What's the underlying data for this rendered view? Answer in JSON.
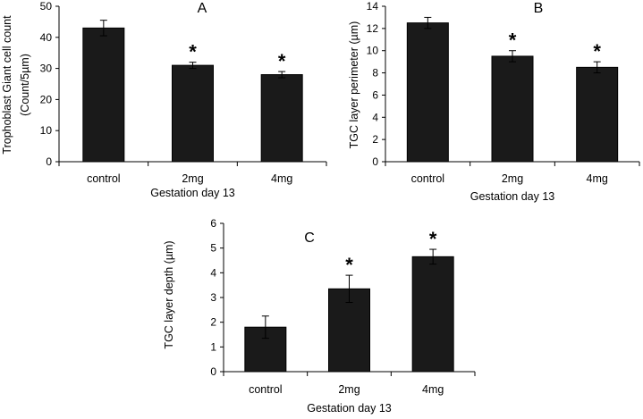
{
  "chart_data": [
    {
      "type": "bar",
      "panel_label": "A",
      "categories": [
        "control",
        "2mg",
        "4mg"
      ],
      "values": [
        43,
        31,
        28
      ],
      "errors": [
        2.5,
        1.0,
        1.0
      ],
      "significance": [
        "",
        "*",
        "*"
      ],
      "xlabel": "Gestation day 13",
      "ylabel_lines": [
        "Trophoblast Giant cell count",
        "(Count/5µm)"
      ],
      "ylim": [
        0,
        50
      ],
      "yticks": [
        0,
        10,
        20,
        30,
        40,
        50
      ],
      "grid": false
    },
    {
      "type": "bar",
      "panel_label": "B",
      "categories": [
        "control",
        "2mg",
        "4mg"
      ],
      "values": [
        12.5,
        9.5,
        8.5
      ],
      "errors": [
        0.5,
        0.5,
        0.5
      ],
      "significance": [
        "",
        "*",
        "*"
      ],
      "xlabel": "Gestation day 13",
      "ylabel_lines": [
        "TGC layer perimeter  (µm)"
      ],
      "ylim": [
        0,
        14
      ],
      "yticks": [
        0,
        2,
        4,
        6,
        8,
        10,
        12,
        14
      ],
      "grid": false
    },
    {
      "type": "bar",
      "panel_label": "C",
      "categories": [
        "control",
        "2mg",
        "4mg"
      ],
      "values": [
        1.8,
        3.35,
        4.65
      ],
      "errors": [
        0.45,
        0.55,
        0.3
      ],
      "significance": [
        "",
        "*",
        "*"
      ],
      "xlabel": "Gestation day 13",
      "ylabel_lines": [
        "TGC layer depth  (µm)"
      ],
      "ylim": [
        0,
        6
      ],
      "yticks": [
        0,
        1,
        2,
        3,
        4,
        5,
        6
      ],
      "grid": false
    }
  ]
}
